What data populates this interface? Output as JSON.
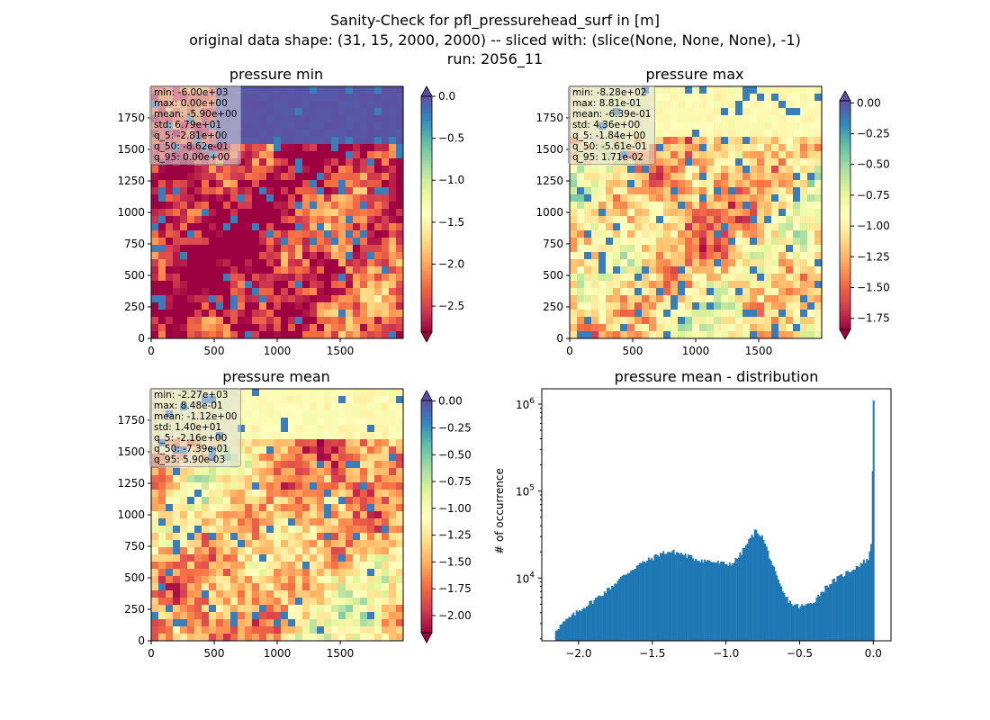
{
  "figure": {
    "title_line1": "Sanity-Check for pfl_pressurehead_surf in [m]",
    "title_line2": "original data shape: (31, 15, 2000, 2000) -- sliced with: (slice(None, None, None), -1)",
    "title_line3": "run: 2056_11"
  },
  "colors": {
    "hist_bar": "#1f77b4",
    "colormap": "Spectral",
    "colormap_stops": [
      "#9e0142",
      "#d53e4f",
      "#f46d43",
      "#fdae61",
      "#fee08b",
      "#ffffbf",
      "#e6f598",
      "#abdda4",
      "#66c2a5",
      "#3288bd",
      "#5e4fa2"
    ]
  },
  "maps": [
    {
      "title": "pressure min",
      "stats": [
        "min: -6.00e+03",
        "max: 0.00e+00",
        "mean: -5.90e+00",
        "std: 6.79e+01",
        "q_5: -2.81e+00",
        "q_50: -8.62e-01",
        "q_95: 0.00e+00"
      ],
      "x_ticks": [
        "0",
        "500",
        "1000",
        "1500"
      ],
      "y_ticks": [
        "0",
        "250",
        "500",
        "750",
        "1000",
        "1250",
        "1500",
        "1750"
      ],
      "cbar_ticks": [
        "0.0",
        "−0.5",
        "−1.0",
        "−1.5",
        "−2.0",
        "−2.5"
      ],
      "cbar_range": [
        -2.81,
        0.0
      ],
      "cbar_extend": "both"
    },
    {
      "title": "pressure max",
      "stats": [
        "min: -8.28e+02",
        "max: 8.81e-01",
        "mean: -6.39e-01",
        "std: 4.36e+00",
        "q_5: -1.84e+00",
        "q_50: -5.61e-01",
        "q_95: 1.71e-02"
      ],
      "x_ticks": [
        "0",
        "500",
        "1000",
        "1500"
      ],
      "y_ticks": [
        "0",
        "250",
        "500",
        "750",
        "1000",
        "1250",
        "1500",
        "1750"
      ],
      "cbar_ticks": [
        "0.00",
        "−0.25",
        "−0.50",
        "−0.75",
        "−1.00",
        "−1.25",
        "−1.50",
        "−1.75"
      ],
      "cbar_range": [
        -1.84,
        0.0171
      ],
      "cbar_extend": "both"
    },
    {
      "title": "pressure mean",
      "stats": [
        "min: -2.27e+03",
        "max: 8.48e-01",
        "mean: -1.12e+00",
        "std: 1.40e+01",
        "q_5: -2.16e+00",
        "q_50: -7.39e-01",
        "q_95: 5.90e-03"
      ],
      "x_ticks": [
        "0",
        "500",
        "1000",
        "1500"
      ],
      "y_ticks": [
        "0",
        "250",
        "500",
        "750",
        "1000",
        "1250",
        "1500",
        "1750"
      ],
      "cbar_ticks": [
        "0.00",
        "−0.25",
        "−0.50",
        "−0.75",
        "−1.00",
        "−1.25",
        "−1.50",
        "−1.75",
        "−2.00"
      ],
      "cbar_range": [
        -2.16,
        0.0059
      ],
      "cbar_extend": "both"
    }
  ],
  "chart_data": {
    "type": "bar",
    "title": "pressure mean - distribution",
    "xlabel": "",
    "ylabel": "# of occurrence",
    "yscale": "log",
    "xlim": [
      -2.25,
      0.12
    ],
    "ylim": [
      1900,
      1500000
    ],
    "x_ticks": [
      "−2.0",
      "−1.5",
      "−1.0",
      "−0.5",
      "0.0"
    ],
    "y_ticks": [
      "10^4",
      "10^5",
      "10^6"
    ],
    "profile_x": [
      -2.16,
      -2.1,
      -2.0,
      -1.9,
      -1.8,
      -1.7,
      -1.6,
      -1.5,
      -1.45,
      -1.4,
      -1.35,
      -1.3,
      -1.2,
      -1.1,
      -1.0,
      -0.95,
      -0.9,
      -0.85,
      -0.8,
      -0.78,
      -0.75,
      -0.7,
      -0.65,
      -0.6,
      -0.55,
      -0.5,
      -0.45,
      -0.4,
      -0.35,
      -0.3,
      -0.2,
      -0.1,
      -0.03,
      -0.01,
      0.0
    ],
    "profile_counts": [
      2500,
      3100,
      4200,
      5500,
      7400,
      10500,
      14000,
      17000,
      19000,
      20000,
      20000,
      19000,
      16500,
      15500,
      14500,
      15000,
      19000,
      26000,
      35000,
      34000,
      29000,
      17000,
      9500,
      6200,
      5000,
      4700,
      4900,
      5500,
      7000,
      8600,
      11000,
      14000,
      17000,
      28000,
      1100000
    ]
  }
}
